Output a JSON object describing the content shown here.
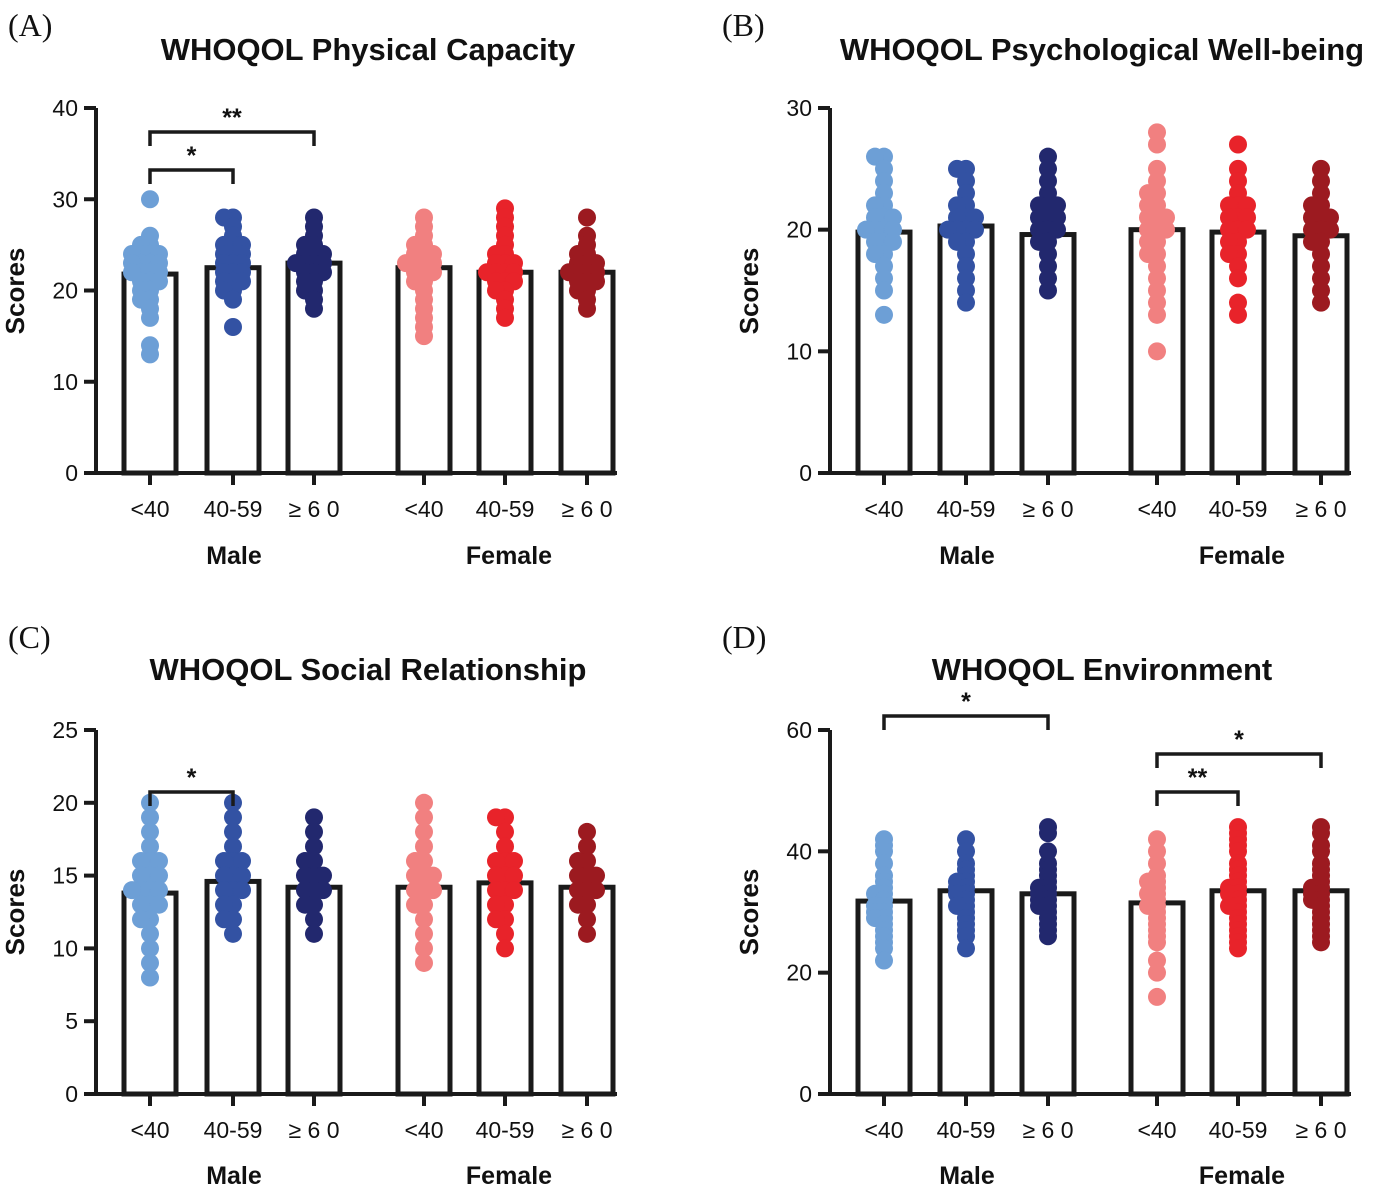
{
  "figure": {
    "x_categories": [
      "<40",
      "40-59",
      "≥ 6 0",
      "<40",
      "40-59",
      "≥ 6 0"
    ],
    "groups": [
      "Male",
      "Female"
    ],
    "group_colors": [
      "#6d9fd6",
      "#3352a3",
      "#22286e",
      "#f18080",
      "#e8232a",
      "#9c1a20"
    ],
    "bar_color": "#ffffff",
    "axis_color": "#1a1a1a"
  },
  "chart_data": [
    {
      "type": "bar",
      "panel_label": "(A)",
      "title": "WHOQOL Physical Capacity",
      "ylabel": "Scores",
      "xlabel": "",
      "ylim": [
        0,
        40
      ],
      "yticks": [
        0,
        10,
        20,
        30,
        40
      ],
      "categories": [
        "<40",
        "40-59",
        "≥ 6 0",
        "<40",
        "40-59",
        "≥ 6 0"
      ],
      "groups": [
        "Male",
        "Female"
      ],
      "means": [
        21.8,
        22.5,
        23.0,
        22.5,
        22.0,
        22.0
      ],
      "points": [
        [
          30,
          26,
          25,
          25,
          24,
          24,
          24,
          24,
          23,
          23,
          23,
          23,
          22,
          22,
          22,
          22,
          21,
          21,
          21,
          20,
          20,
          19,
          19,
          18,
          17,
          13,
          14
        ],
        [
          28,
          28,
          27,
          26,
          25,
          25,
          25,
          24,
          24,
          24,
          23,
          23,
          23,
          22,
          22,
          22,
          21,
          21,
          21,
          20,
          20,
          19,
          16
        ],
        [
          28,
          27,
          26,
          25,
          25,
          24,
          24,
          24,
          23,
          23,
          23,
          23,
          22,
          22,
          22,
          21,
          21,
          20,
          20,
          19,
          18
        ],
        [
          28,
          27,
          26,
          25,
          25,
          24,
          24,
          24,
          23,
          23,
          23,
          23,
          22,
          22,
          22,
          21,
          21,
          20,
          19,
          18,
          17,
          16,
          15
        ],
        [
          29,
          28,
          27,
          26,
          25,
          24,
          24,
          23,
          23,
          23,
          22,
          22,
          22,
          22,
          21,
          21,
          21,
          20,
          20,
          19,
          18,
          17
        ],
        [
          28,
          26,
          25,
          24,
          24,
          23,
          23,
          23,
          22,
          22,
          22,
          22,
          21,
          21,
          21,
          20,
          20,
          19,
          18
        ]
      ],
      "significance": [
        {
          "from": 0,
          "to": 2,
          "label": "**"
        },
        {
          "from": 0,
          "to": 1,
          "label": "*"
        }
      ]
    },
    {
      "type": "bar",
      "panel_label": "(B)",
      "title": "WHOQOL Psychological Well-being",
      "ylabel": "Scores",
      "xlabel": "",
      "ylim": [
        0,
        30
      ],
      "yticks": [
        0,
        10,
        20,
        30
      ],
      "categories": [
        "<40",
        "40-59",
        "≥ 6 0",
        "<40",
        "40-59",
        "≥ 6 0"
      ],
      "groups": [
        "Male",
        "Female"
      ],
      "means": [
        19.8,
        20.3,
        19.6,
        20.0,
        19.8,
        19.5
      ],
      "points": [
        [
          26,
          26,
          25,
          24,
          23,
          22,
          22,
          21,
          21,
          21,
          20,
          20,
          20,
          20,
          19,
          19,
          19,
          18,
          18,
          17,
          16,
          15,
          13
        ],
        [
          25,
          25,
          24,
          23,
          22,
          22,
          21,
          21,
          21,
          20,
          20,
          20,
          20,
          19,
          19,
          18,
          17,
          16,
          15,
          14
        ],
        [
          26,
          25,
          24,
          23,
          22,
          22,
          22,
          21,
          21,
          21,
          20,
          20,
          20,
          19,
          19,
          18,
          17,
          16,
          15
        ],
        [
          28,
          27,
          25,
          24,
          23,
          23,
          22,
          22,
          21,
          21,
          21,
          20,
          20,
          20,
          19,
          19,
          18,
          18,
          17,
          16,
          15,
          14,
          13,
          10
        ],
        [
          27,
          25,
          24,
          23,
          22,
          22,
          22,
          21,
          21,
          21,
          20,
          20,
          20,
          19,
          19,
          18,
          18,
          17,
          16,
          14,
          13
        ],
        [
          25,
          24,
          23,
          22,
          22,
          21,
          21,
          21,
          20,
          20,
          20,
          19,
          19,
          18,
          17,
          16,
          15,
          14
        ]
      ],
      "significance": []
    },
    {
      "type": "bar",
      "panel_label": "(C)",
      "title": "WHOQOL Social Relationship",
      "ylabel": "Scores",
      "xlabel": "",
      "ylim": [
        0,
        25
      ],
      "yticks": [
        0,
        5,
        10,
        15,
        20,
        25
      ],
      "categories": [
        "<40",
        "40-59",
        "≥ 6 0",
        "<40",
        "40-59",
        "≥ 6 0"
      ],
      "groups": [
        "Male",
        "Female"
      ],
      "means": [
        13.8,
        14.6,
        14.2,
        14.2,
        14.5,
        14.2
      ],
      "points": [
        [
          20,
          19,
          18,
          17,
          16,
          16,
          16,
          15,
          15,
          15,
          14,
          14,
          14,
          14,
          13,
          13,
          13,
          12,
          12,
          11,
          10,
          9,
          8
        ],
        [
          20,
          19,
          18,
          17,
          16,
          16,
          16,
          15,
          15,
          15,
          14,
          14,
          14,
          13,
          13,
          12,
          12,
          11
        ],
        [
          19,
          18,
          17,
          16,
          16,
          15,
          15,
          15,
          14,
          14,
          14,
          13,
          13,
          12,
          11
        ],
        [
          20,
          19,
          18,
          17,
          16,
          16,
          15,
          15,
          15,
          14,
          14,
          14,
          13,
          13,
          12,
          11,
          10,
          9
        ],
        [
          19,
          19,
          18,
          17,
          16,
          16,
          16,
          15,
          15,
          15,
          14,
          14,
          14,
          13,
          13,
          12,
          12,
          11,
          10
        ],
        [
          18,
          17,
          16,
          16,
          15,
          15,
          15,
          14,
          14,
          14,
          13,
          13,
          12,
          11
        ]
      ],
      "significance": [
        {
          "from": 0,
          "to": 1,
          "label": "*"
        }
      ]
    },
    {
      "type": "bar",
      "panel_label": "(D)",
      "title": "WHOQOL Environment",
      "ylabel": "Scores",
      "xlabel": "",
      "ylim": [
        0,
        60
      ],
      "yticks": [
        0,
        20,
        40,
        60
      ],
      "categories": [
        "<40",
        "40-59",
        "≥ 6 0",
        "<40",
        "40-59",
        "≥ 6 0"
      ],
      "groups": [
        "Male",
        "Female"
      ],
      "means": [
        31.8,
        33.5,
        33.0,
        31.5,
        33.5,
        33.5
      ],
      "points": [
        [
          42,
          41,
          40,
          38,
          36,
          35,
          34,
          33,
          33,
          32,
          31,
          31,
          30,
          30,
          29,
          29,
          28,
          27,
          26,
          25,
          24,
          22
        ],
        [
          42,
          40,
          38,
          37,
          36,
          35,
          35,
          34,
          34,
          33,
          33,
          32,
          31,
          31,
          30,
          29,
          28,
          27,
          26,
          24
        ],
        [
          44,
          43,
          40,
          38,
          37,
          36,
          35,
          34,
          34,
          33,
          33,
          32,
          32,
          31,
          31,
          30,
          29,
          28,
          27,
          26
        ],
        [
          42,
          40,
          38,
          36,
          35,
          35,
          34,
          33,
          33,
          32,
          31,
          31,
          30,
          29,
          28,
          27,
          26,
          25,
          22,
          20,
          16
        ],
        [
          44,
          43,
          42,
          41,
          40,
          38,
          37,
          36,
          35,
          34,
          34,
          33,
          33,
          32,
          31,
          31,
          30,
          29,
          28,
          27,
          26,
          25,
          24
        ],
        [
          44,
          43,
          41,
          40,
          38,
          37,
          36,
          35,
          34,
          34,
          33,
          33,
          32,
          32,
          31,
          30,
          29,
          28,
          27,
          26,
          25
        ]
      ],
      "significance": [
        {
          "from": 0,
          "to": 2,
          "label": "*"
        },
        {
          "from": 3,
          "to": 5,
          "label": "*"
        },
        {
          "from": 3,
          "to": 4,
          "label": "**"
        }
      ]
    }
  ]
}
